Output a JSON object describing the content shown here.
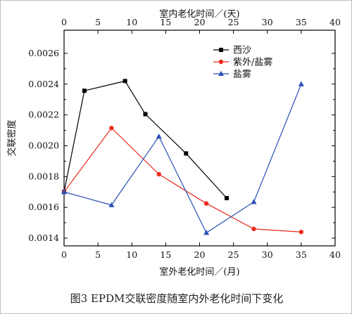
{
  "chart_data": {
    "type": "line",
    "top_axis": {
      "label": "室内老化时间／(天)",
      "range": [
        0,
        40
      ],
      "ticks": [
        "0",
        "5",
        "10",
        "15",
        "20",
        "25",
        "30",
        "35",
        "40"
      ]
    },
    "bottom_axis": {
      "label": "室外老化时间／(月)",
      "range": [
        0,
        40
      ],
      "ticks": [
        "0",
        "5",
        "10",
        "15",
        "20",
        "25",
        "30",
        "35",
        "40"
      ]
    },
    "y_axis": {
      "label": "交联密度",
      "range": [
        0.00135,
        0.00275
      ],
      "ticks": [
        "0.0014",
        "0.0016",
        "0.0018",
        "0.0020",
        "0.0022",
        "0.0024",
        "0.0026"
      ]
    },
    "series": [
      {
        "name": "西沙",
        "color": "#000000",
        "marker": "square",
        "x": [
          0,
          3,
          9,
          12,
          18,
          24
        ],
        "y": [
          0.0017,
          0.002357,
          0.00242,
          0.002205,
          0.00195,
          0.00166
        ]
      },
      {
        "name": "紫外/盐雾",
        "color": "#e8291c",
        "marker": "circle",
        "x": [
          0,
          7,
          14,
          21,
          28,
          35
        ],
        "y": [
          0.0017,
          0.002115,
          0.001815,
          0.001625,
          0.00146,
          0.00144
        ]
      },
      {
        "name": "盐雾",
        "color": "#2a4fb5",
        "marker": "triangle",
        "x": [
          0,
          7,
          14,
          21,
          28,
          35
        ],
        "y": [
          0.0017,
          0.001615,
          0.00206,
          0.001435,
          0.001635,
          0.0024
        ]
      }
    ],
    "legend_position": "top-right",
    "grid": false
  },
  "caption": "图3    EPDM交联密度随室内外老化时间下变化"
}
